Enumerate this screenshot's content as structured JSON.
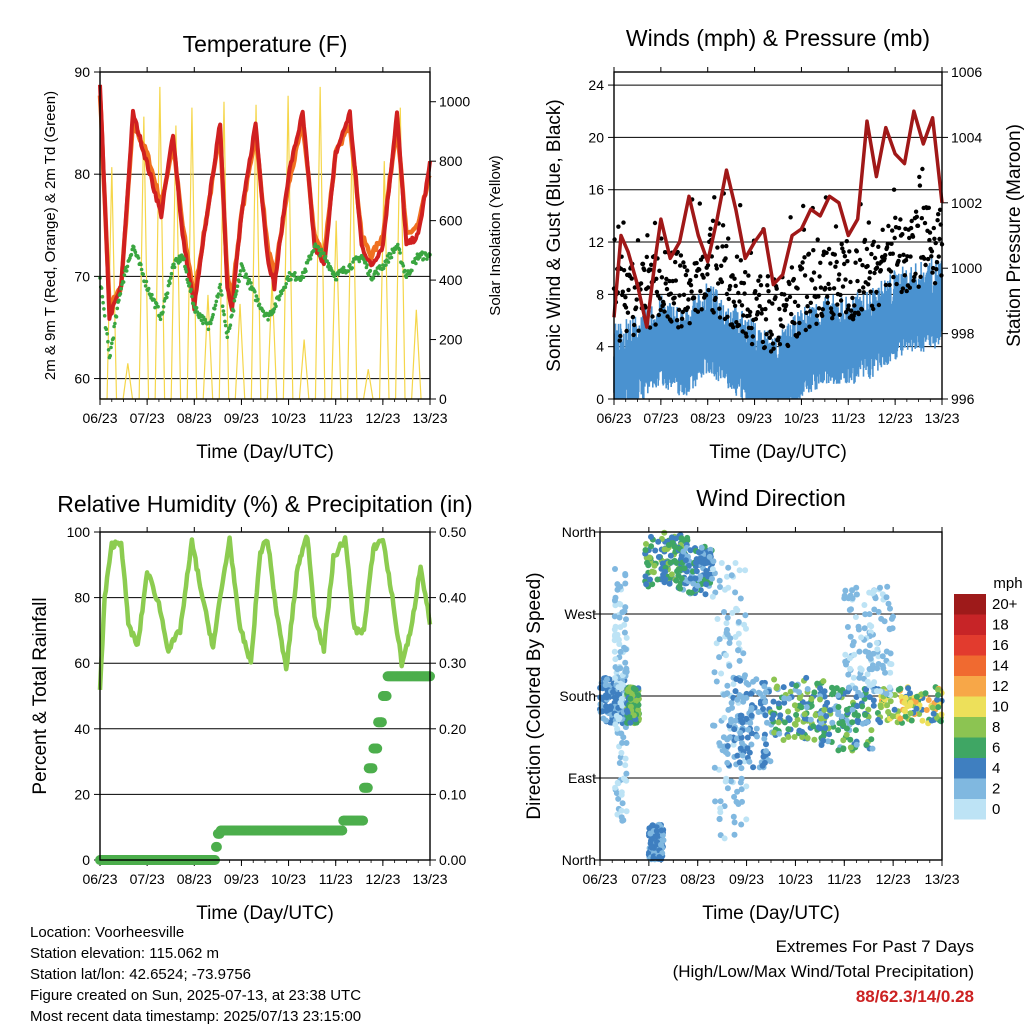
{
  "x_tick_labels": [
    "06/23",
    "07/23",
    "08/23",
    "09/23",
    "10/23",
    "11/23",
    "12/23",
    "13/23"
  ],
  "x_axis_label": "Time (Day/UTC)",
  "chart_data": [
    {
      "type": "line",
      "title": "Temperature (F)",
      "ylabel": "2m & 9m T (Red, Orange) & 2m Td (Green)",
      "ylabel_right": "Solar Insolation (Yellow)",
      "ylim": [
        58,
        90
      ],
      "yticks": [
        "60",
        "70",
        "80",
        "90"
      ],
      "ylim_right": [
        0,
        1100
      ],
      "yticks_right": [
        "0",
        "200",
        "400",
        "600",
        "800",
        "1000"
      ],
      "grid": "horizontal",
      "x_days": [
        0,
        0.2,
        0.45,
        0.7,
        1.0,
        1.3,
        1.55,
        1.75,
        2.0,
        2.3,
        2.55,
        2.7,
        2.8,
        3.0,
        3.3,
        3.55,
        3.7,
        4.0,
        4.3,
        4.55,
        4.75,
        5.0,
        5.3,
        5.55,
        5.75,
        6.0,
        6.3,
        6.5,
        6.75,
        7.0
      ],
      "series": [
        {
          "name": "2m T",
          "color": "#d02020",
          "values": [
            89,
            66,
            69,
            86,
            81,
            76,
            84,
            74,
            67,
            77,
            85,
            69,
            67,
            76,
            85,
            72,
            69,
            80,
            86,
            73,
            71,
            82,
            86,
            73,
            71,
            73,
            86,
            73,
            74,
            81
          ]
        },
        {
          "name": "9m T",
          "color": "#f07020",
          "values": [
            88,
            67,
            69,
            85,
            82,
            77,
            83,
            75,
            68,
            77,
            84,
            70,
            68,
            76,
            84,
            73,
            70,
            79,
            85,
            74,
            72,
            82,
            85,
            74,
            72,
            74,
            85,
            74,
            75,
            80
          ]
        },
        {
          "name": "2m Td",
          "color": "#3aa640",
          "values": [
            70,
            62,
            69,
            73,
            69,
            66,
            71,
            72,
            67,
            65,
            69,
            64,
            66,
            71,
            68,
            66,
            67,
            70,
            70,
            73,
            72,
            70,
            71,
            72,
            70,
            71,
            73,
            70,
            72,
            72
          ]
        },
        {
          "name": "Solar Insolation",
          "color": "#f5d64a",
          "axis": "right",
          "peaks": [
            780,
            120,
            950,
            1050,
            920,
            980,
            350,
            1000,
            320,
            990,
            400,
            1020,
            200,
            1050,
            600,
            900,
            100,
            800,
            980,
            300
          ]
        }
      ]
    },
    {
      "type": "scatter",
      "title": "Winds (mph) & Pressure (mb)",
      "ylabel": "Sonic Wind & Gust (Blue, Black)",
      "ylabel_right": "Station Pressure (Maroon)",
      "ylim": [
        0,
        25
      ],
      "yticks": [
        "0",
        "4",
        "8",
        "12",
        "16",
        "20",
        "24"
      ],
      "ylim_right": [
        996,
        1006
      ],
      "yticks_right": [
        "996",
        "998",
        "1000",
        "1002",
        "1004",
        "1006"
      ],
      "grid": "horizontal",
      "pressure_x": [
        0,
        0.15,
        0.3,
        0.5,
        0.7,
        0.9,
        1.0,
        1.2,
        1.4,
        1.6,
        1.8,
        2.0,
        2.2,
        2.4,
        2.6,
        2.8,
        3.0,
        3.2,
        3.4,
        3.6,
        3.8,
        4.0,
        4.2,
        4.4,
        4.6,
        4.8,
        5.0,
        5.2,
        5.4,
        5.6,
        5.8,
        6.0,
        6.2,
        6.4,
        6.6,
        6.8,
        7.0
      ],
      "pressure_values": [
        998.5,
        1001,
        1000.5,
        999.5,
        998.2,
        1000.5,
        1001.5,
        1000.3,
        1000.8,
        1002.2,
        1001,
        1000.2,
        1001.5,
        1003,
        1001.8,
        1000.3,
        1000.8,
        1001.2,
        999.5,
        999.8,
        1001,
        1001.2,
        1001.8,
        1001.6,
        1002.2,
        1002,
        1001,
        1001.5,
        1004.5,
        1002.8,
        1004.3,
        1003.5,
        1003.2,
        1004.8,
        1003.8,
        1004.6,
        1002
      ]
    },
    {
      "type": "line",
      "title": "Relative Humidity (%) & Precipitation (in)",
      "ylabel": "Percent & Total Rainfall",
      "ylim": [
        0,
        100
      ],
      "yticks": [
        "0",
        "20",
        "40",
        "60",
        "80",
        "100"
      ],
      "ylim_right": [
        0,
        0.5
      ],
      "yticks_right": [
        "0.00",
        "0.10",
        "0.20",
        "0.30",
        "0.40",
        "0.50"
      ],
      "grid": "horizontal",
      "x_days": [
        0,
        0.1,
        0.25,
        0.45,
        0.6,
        0.8,
        1.0,
        1.25,
        1.45,
        1.7,
        1.95,
        2.2,
        2.4,
        2.55,
        2.75,
        2.95,
        3.2,
        3.4,
        3.55,
        3.75,
        3.95,
        4.2,
        4.4,
        4.55,
        4.75,
        4.95,
        5.2,
        5.4,
        5.6,
        5.8,
        6.0,
        6.2,
        6.4,
        6.6,
        6.8,
        7.0
      ],
      "series": [
        {
          "name": "Relative Humidity",
          "color": "#8ccc50",
          "values": [
            52,
            80,
            96,
            97,
            72,
            65,
            88,
            78,
            64,
            70,
            97,
            78,
            65,
            80,
            98,
            72,
            60,
            94,
            98,
            75,
            58,
            90,
            99,
            75,
            64,
            92,
            98,
            70,
            70,
            95,
            98,
            80,
            60,
            70,
            90,
            72
          ]
        },
        {
          "name": "Total Rainfall",
          "color": "#4cae4c",
          "axis": "right",
          "step_x": [
            0,
            2.35,
            2.45,
            2.5,
            2.55,
            5.1,
            5.15,
            5.55,
            5.6,
            5.7,
            5.8,
            5.9,
            6.0,
            6.1,
            7.0
          ],
          "values": [
            0,
            0,
            0.02,
            0.04,
            0.045,
            0.045,
            0.06,
            0.06,
            0.11,
            0.14,
            0.17,
            0.21,
            0.25,
            0.28,
            0.28
          ]
        }
      ]
    },
    {
      "type": "scatter",
      "title": "Wind Direction",
      "ylabel": "Direction (Colored By Speed)",
      "yticks": [
        "North",
        "East",
        "South",
        "West",
        "North"
      ],
      "ylim": [
        0,
        360
      ],
      "grid": "horizontal",
      "legend_title": "mph",
      "legend_labels": [
        "20+",
        "18",
        "16",
        "14",
        "12",
        "10",
        "8",
        "6",
        "4",
        "2",
        "0"
      ],
      "legend_colors": [
        "#9e1a1a",
        "#c72427",
        "#e23b2e",
        "#f06a30",
        "#f7a748",
        "#ede05a",
        "#8cc452",
        "#3fa664",
        "#3f7fc0",
        "#80b8e0",
        "#bde3f5"
      ]
    }
  ],
  "info": {
    "location": "Location: Voorheesville",
    "elevation": "Station elevation: 115.062 m",
    "latlon": "Station lat/lon: 42.6524; -73.9756",
    "created": "Figure created on Sun, 2025-07-13, at 23:38 UTC",
    "recent": "Most recent data timestamp: 2025/07/13 23:15:00"
  },
  "extremes": {
    "title": "Extremes For Past 7 Days",
    "subtitle": "(High/Low/Max Wind/Total Precipitation)",
    "values": "88/62.3/14/0.28"
  }
}
